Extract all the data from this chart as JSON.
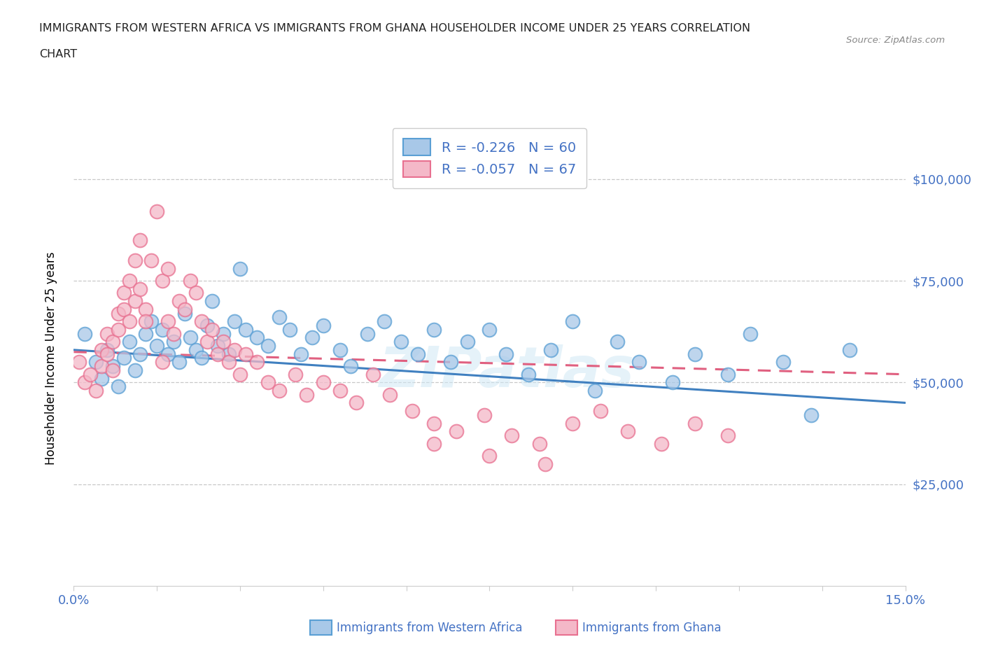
{
  "title_line1": "IMMIGRANTS FROM WESTERN AFRICA VS IMMIGRANTS FROM GHANA HOUSEHOLDER INCOME UNDER 25 YEARS CORRELATION",
  "title_line2": "CHART",
  "source_text": "Source: ZipAtlas.com",
  "ylabel": "Householder Income Under 25 years",
  "xlim": [
    0.0,
    0.15
  ],
  "ylim": [
    0,
    112000
  ],
  "xticks": [
    0.0,
    0.015,
    0.03,
    0.045,
    0.06,
    0.075,
    0.09,
    0.105,
    0.12,
    0.135,
    0.15
  ],
  "ytick_positions": [
    25000,
    50000,
    75000,
    100000
  ],
  "ytick_labels": [
    "$25,000",
    "$50,000",
    "$75,000",
    "$100,000"
  ],
  "watermark": "ZIPatlas",
  "color_blue": "#a8c8e8",
  "color_pink": "#f4b8c8",
  "edge_blue": "#5a9fd4",
  "edge_pink": "#e87090",
  "line_blue": "#4080c0",
  "line_pink": "#e06080",
  "blue_x": [
    0.002,
    0.004,
    0.005,
    0.006,
    0.007,
    0.008,
    0.009,
    0.01,
    0.011,
    0.012,
    0.013,
    0.014,
    0.015,
    0.016,
    0.017,
    0.018,
    0.019,
    0.02,
    0.021,
    0.022,
    0.023,
    0.024,
    0.025,
    0.026,
    0.027,
    0.028,
    0.029,
    0.03,
    0.031,
    0.033,
    0.035,
    0.037,
    0.039,
    0.041,
    0.043,
    0.045,
    0.048,
    0.05,
    0.053,
    0.056,
    0.059,
    0.062,
    0.065,
    0.068,
    0.071,
    0.075,
    0.078,
    0.082,
    0.086,
    0.09,
    0.094,
    0.098,
    0.102,
    0.108,
    0.112,
    0.118,
    0.122,
    0.128,
    0.133,
    0.14
  ],
  "blue_y": [
    62000,
    55000,
    51000,
    58000,
    54000,
    49000,
    56000,
    60000,
    53000,
    57000,
    62000,
    65000,
    59000,
    63000,
    57000,
    60000,
    55000,
    67000,
    61000,
    58000,
    56000,
    64000,
    70000,
    59000,
    62000,
    57000,
    65000,
    78000,
    63000,
    61000,
    59000,
    66000,
    63000,
    57000,
    61000,
    64000,
    58000,
    54000,
    62000,
    65000,
    60000,
    57000,
    63000,
    55000,
    60000,
    63000,
    57000,
    52000,
    58000,
    65000,
    48000,
    60000,
    55000,
    50000,
    57000,
    52000,
    62000,
    55000,
    42000,
    58000
  ],
  "pink_x": [
    0.001,
    0.002,
    0.003,
    0.004,
    0.005,
    0.005,
    0.006,
    0.006,
    0.007,
    0.007,
    0.008,
    0.008,
    0.009,
    0.009,
    0.01,
    0.01,
    0.011,
    0.011,
    0.012,
    0.012,
    0.013,
    0.013,
    0.014,
    0.015,
    0.016,
    0.016,
    0.017,
    0.017,
    0.018,
    0.019,
    0.02,
    0.021,
    0.022,
    0.023,
    0.024,
    0.025,
    0.026,
    0.027,
    0.028,
    0.029,
    0.03,
    0.031,
    0.033,
    0.035,
    0.037,
    0.04,
    0.042,
    0.045,
    0.048,
    0.051,
    0.054,
    0.057,
    0.061,
    0.065,
    0.069,
    0.074,
    0.079,
    0.084,
    0.09,
    0.095,
    0.1,
    0.106,
    0.112,
    0.118,
    0.065,
    0.075,
    0.085
  ],
  "pink_y": [
    55000,
    50000,
    52000,
    48000,
    58000,
    54000,
    62000,
    57000,
    60000,
    53000,
    67000,
    63000,
    72000,
    68000,
    75000,
    65000,
    80000,
    70000,
    85000,
    73000,
    68000,
    65000,
    80000,
    92000,
    75000,
    55000,
    78000,
    65000,
    62000,
    70000,
    68000,
    75000,
    72000,
    65000,
    60000,
    63000,
    57000,
    60000,
    55000,
    58000,
    52000,
    57000,
    55000,
    50000,
    48000,
    52000,
    47000,
    50000,
    48000,
    45000,
    52000,
    47000,
    43000,
    40000,
    38000,
    42000,
    37000,
    35000,
    40000,
    43000,
    38000,
    35000,
    40000,
    37000,
    35000,
    32000,
    30000
  ]
}
